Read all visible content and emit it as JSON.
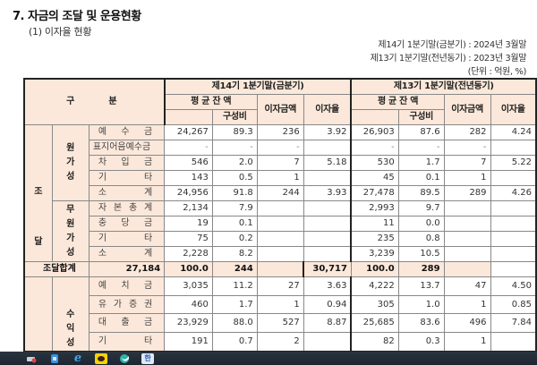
{
  "document": {
    "title": "7. 자금의 조달 및 운용현황",
    "subtitle": "(1) 이자율 현황",
    "period_current": "제14기 1분기말(금분기) : 2024년 3월말",
    "period_previous": "제13기 1분기말(전년동기) : 2023년 3월말",
    "unit": "(단위 : 억원, %)"
  },
  "table": {
    "header": {
      "category": "구　　분",
      "current_period": "제14기 1분기말(금분기)",
      "previous_period": "제13기 1분기말(전년동기)",
      "avg_balance": "평 균 잔 액",
      "composition": "구성비",
      "interest_amount": "이자금액",
      "interest_rate": "이자율"
    },
    "groups": {
      "funding": "조\n\n\n달",
      "funding_top": "조",
      "funding_bottom": "달",
      "cost_bearing": "원가성",
      "cost_bearing_lines": [
        "원",
        "가",
        "성"
      ],
      "non_cost_bearing_lines": [
        "무",
        "원",
        "가",
        "성"
      ],
      "funding_total_label": [
        "조",
        "달",
        "합",
        "계"
      ],
      "earning_lines": [
        "수",
        "익",
        "성"
      ]
    },
    "cost_bearing_rows": [
      {
        "label": [
          "예",
          "수",
          "금"
        ],
        "cur_bal": "24,267",
        "cur_comp": "89.3",
        "cur_int": "236",
        "cur_rate": "3.92",
        "prev_bal": "26,903",
        "prev_comp": "87.6",
        "prev_int": "282",
        "prev_rate": "4.24"
      },
      {
        "label": [
          "표지어음예수금"
        ],
        "cur_bal": "-",
        "cur_comp": "-",
        "cur_int": "-",
        "cur_rate": "",
        "prev_bal": "-",
        "prev_comp": "-",
        "prev_int": "-",
        "prev_rate": ""
      },
      {
        "label": [
          "차",
          "입",
          "금"
        ],
        "cur_bal": "546",
        "cur_comp": "2.0",
        "cur_int": "7",
        "cur_rate": "5.18",
        "prev_bal": "530",
        "prev_comp": "1.7",
        "prev_int": "7",
        "prev_rate": "5.22"
      },
      {
        "label": [
          "기",
          "타"
        ],
        "cur_bal": "143",
        "cur_comp": "0.5",
        "cur_int": "1",
        "cur_rate": "",
        "prev_bal": "45",
        "prev_comp": "0.1",
        "prev_int": "1",
        "prev_rate": ""
      },
      {
        "label": [
          "소",
          "계"
        ],
        "cur_bal": "24,956",
        "cur_comp": "91.8",
        "cur_int": "244",
        "cur_rate": "3.93",
        "prev_bal": "27,478",
        "prev_comp": "89.5",
        "prev_int": "289",
        "prev_rate": "4.26"
      }
    ],
    "non_cost_rows": [
      {
        "label": [
          "자",
          "본",
          "총",
          "계"
        ],
        "cur_bal": "2,134",
        "cur_comp": "7.9",
        "prev_bal": "2,993",
        "prev_comp": "9.7"
      },
      {
        "label": [
          "충",
          "당",
          "금"
        ],
        "cur_bal": "19",
        "cur_comp": "0.1",
        "prev_bal": "11",
        "prev_comp": "0.0"
      },
      {
        "label": [
          "기",
          "타"
        ],
        "cur_bal": "75",
        "cur_comp": "0.2",
        "prev_bal": "235",
        "prev_comp": "0.8"
      },
      {
        "label": [
          "소",
          "계"
        ],
        "cur_bal": "2,228",
        "cur_comp": "8.2",
        "prev_bal": "3,239",
        "prev_comp": "10.5"
      }
    ],
    "funding_total": {
      "cur_bal": "27,184",
      "cur_comp": "100.0",
      "cur_int": "244",
      "cur_rate": "",
      "prev_bal": "30,717",
      "prev_comp": "100.0",
      "prev_int": "289",
      "prev_rate": ""
    },
    "earning_rows": [
      {
        "label": [
          "예",
          "치",
          "금"
        ],
        "cur_bal": "3,035",
        "cur_comp": "11.2",
        "cur_int": "27",
        "cur_rate": "3.63",
        "prev_bal": "4,222",
        "prev_comp": "13.7",
        "prev_int": "47",
        "prev_rate": "4.50"
      },
      {
        "label": [
          "유",
          "가",
          "증",
          "권"
        ],
        "cur_bal": "460",
        "cur_comp": "1.7",
        "cur_int": "1",
        "cur_rate": "0.94",
        "prev_bal": "305",
        "prev_comp": "1.0",
        "prev_int": "1",
        "prev_rate": "0.85"
      },
      {
        "label": [
          "대",
          "출",
          "금"
        ],
        "cur_bal": "23,929",
        "cur_comp": "88.0",
        "cur_int": "527",
        "cur_rate": "8.87",
        "prev_bal": "25,685",
        "prev_comp": "83.6",
        "prev_int": "496",
        "prev_rate": "7.84"
      },
      {
        "label": [
          "기",
          "타"
        ],
        "cur_bal": "191",
        "cur_comp": "0.7",
        "cur_int": "2",
        "cur_rate": "",
        "prev_bal": "82",
        "prev_comp": "0.3",
        "prev_int": "1",
        "prev_rate": ""
      }
    ]
  },
  "taskbar": {
    "icons": [
      "network-icon",
      "app-icon",
      "internet-explorer-icon",
      "kakaotalk-icon",
      "browser-icon",
      "document-editor-icon"
    ]
  }
}
